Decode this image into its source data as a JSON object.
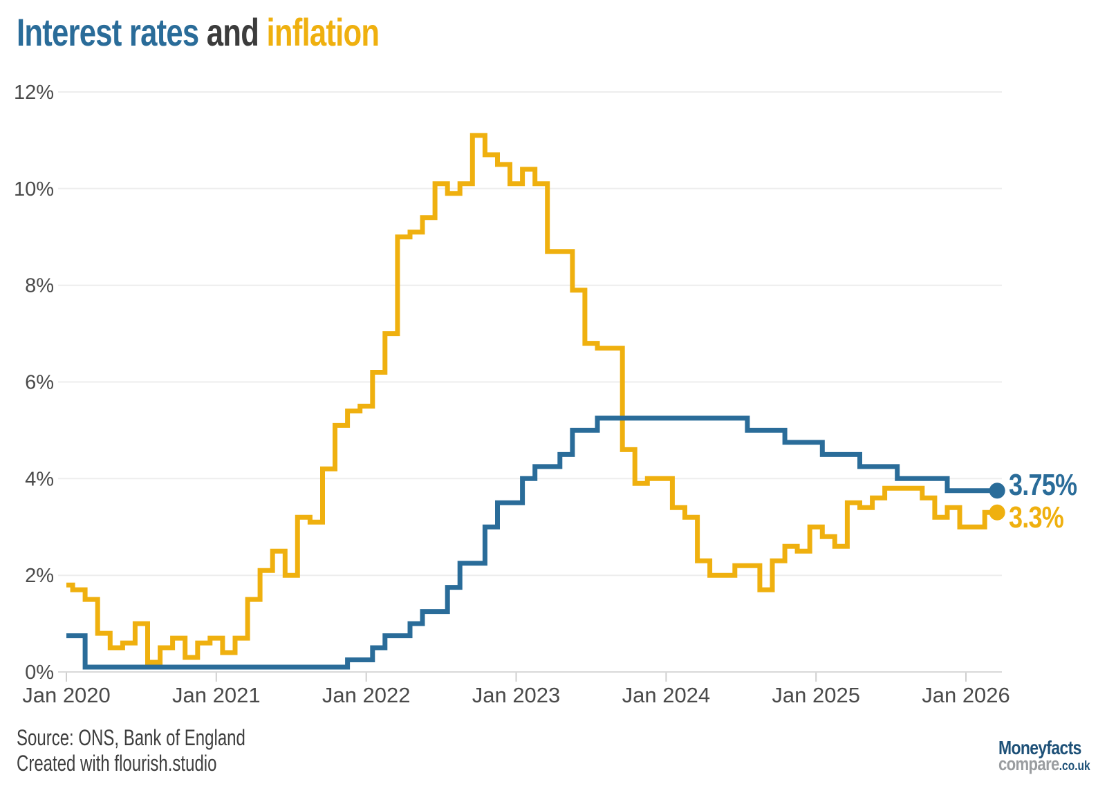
{
  "title": {
    "part_interest": "Interest rates",
    "part_and": " and ",
    "part_inflation": "inflation"
  },
  "colors": {
    "interest": "#2A6C99",
    "inflation": "#EFB00F",
    "and": "#3C3C3C",
    "axis_text": "#4A4A4A",
    "gridline": "#EDEDED",
    "axis_line": "#D8D8D8",
    "tick": "#CFCFCF",
    "logo_blue": "#1D5077",
    "logo_gray": "#9A9DA0"
  },
  "chart_data": {
    "type": "line",
    "step_interpolation": "step-middle",
    "frequency": "monthly",
    "x_start": "Jan 2020",
    "x_end": "Mar 2026",
    "x_tick_labels": [
      "Jan 2020",
      "Jan 2021",
      "Jan 2022",
      "Jan 2023",
      "Jan 2024",
      "Jan 2025",
      "Jan 2026"
    ],
    "y_tick_labels": [
      "0%",
      "2%",
      "4%",
      "6%",
      "8%",
      "10%",
      "12%"
    ],
    "ylim": [
      0,
      12
    ],
    "value_suffix": "%",
    "grid": "horizontal",
    "legend_position": "none (colored title + end labels)",
    "series": [
      {
        "name": "Interest rates",
        "color": "#2A6C99",
        "end_label": "3.75%",
        "end_value": 3.75,
        "values": [
          0.75,
          0.75,
          0.1,
          0.1,
          0.1,
          0.1,
          0.1,
          0.1,
          0.1,
          0.1,
          0.1,
          0.1,
          0.1,
          0.1,
          0.1,
          0.1,
          0.1,
          0.1,
          0.1,
          0.1,
          0.1,
          0.1,
          0.1,
          0.25,
          0.25,
          0.5,
          0.75,
          0.75,
          1.0,
          1.25,
          1.25,
          1.75,
          2.25,
          2.25,
          3.0,
          3.5,
          3.5,
          4.0,
          4.25,
          4.25,
          4.5,
          5.0,
          5.0,
          5.25,
          5.25,
          5.25,
          5.25,
          5.25,
          5.25,
          5.25,
          5.25,
          5.25,
          5.25,
          5.25,
          5.25,
          5.0,
          5.0,
          5.0,
          4.75,
          4.75,
          4.75,
          4.5,
          4.5,
          4.5,
          4.25,
          4.25,
          4.25,
          4.0,
          4.0,
          4.0,
          4.0,
          3.75,
          3.75,
          3.75,
          3.75
        ]
      },
      {
        "name": "Inflation",
        "color": "#EFB00F",
        "end_label": "3.3%",
        "end_value": 3.3,
        "values": [
          1.8,
          1.7,
          1.5,
          0.8,
          0.5,
          0.6,
          1.0,
          0.2,
          0.5,
          0.7,
          0.3,
          0.6,
          0.7,
          0.4,
          0.7,
          1.5,
          2.1,
          2.5,
          2.0,
          3.2,
          3.1,
          4.2,
          5.1,
          5.4,
          5.5,
          6.2,
          7.0,
          9.0,
          9.1,
          9.4,
          10.1,
          9.9,
          10.1,
          11.1,
          10.7,
          10.5,
          10.1,
          10.4,
          10.1,
          8.7,
          8.7,
          7.9,
          6.8,
          6.7,
          6.7,
          4.6,
          3.9,
          4.0,
          4.0,
          3.4,
          3.2,
          2.3,
          2.0,
          2.0,
          2.2,
          2.2,
          1.7,
          2.3,
          2.6,
          2.5,
          3.0,
          2.8,
          2.6,
          3.5,
          3.4,
          3.6,
          3.8,
          3.8,
          3.8,
          3.6,
          3.2,
          3.4,
          3.0,
          3.0,
          3.3
        ]
      }
    ]
  },
  "footer": {
    "source": "Source: ONS, Bank of England",
    "credit": "Created with flourish.studio"
  },
  "logo": {
    "line1": "Moneyfacts",
    "line2": "compare",
    "line2_suffix": ".co.uk"
  }
}
